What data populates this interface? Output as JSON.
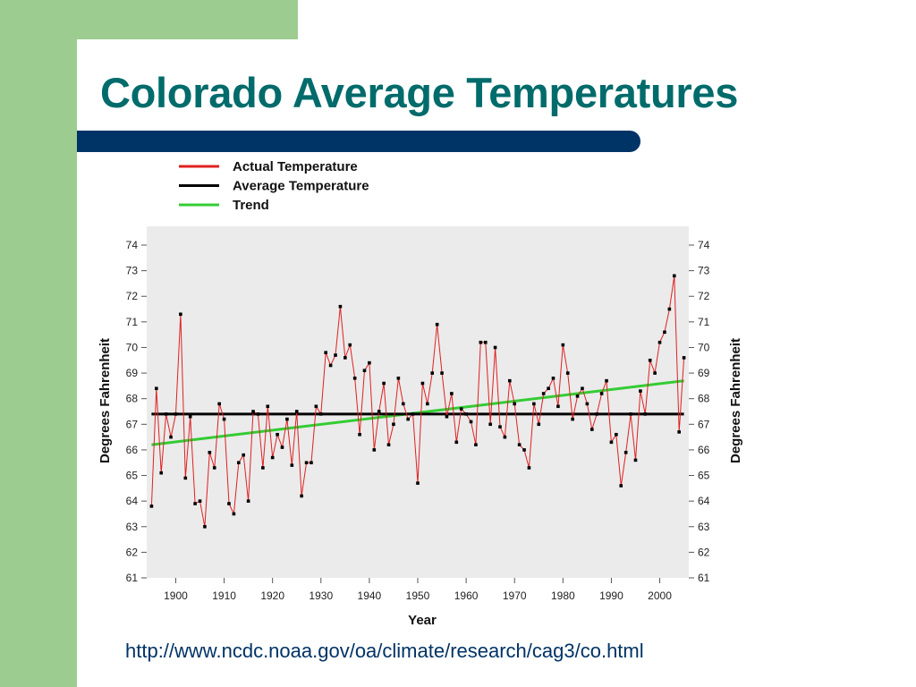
{
  "slide": {
    "title": "Colorado Average Temperatures",
    "source": "http://www.ncdc.noaa.gov/oa/climate/research/cag3/co.html",
    "colors": {
      "title": "#006b6b",
      "bar": "#003366",
      "side": "#9dcc90"
    }
  },
  "chart_data": {
    "type": "line",
    "xlabel": "Year",
    "ylabel": "Degrees Fahrenheit",
    "xlim": [
      1894,
      2006
    ],
    "ylim": [
      61,
      74
    ],
    "x_ticks": [
      1900,
      1910,
      1920,
      1930,
      1940,
      1950,
      1960,
      1970,
      1980,
      1990,
      2000
    ],
    "y_ticks": [
      61,
      62,
      63,
      64,
      65,
      66,
      67,
      68,
      69,
      70,
      71,
      72,
      73,
      74
    ],
    "grid": false,
    "legend_position": "top-left",
    "series": [
      {
        "name": "Actual Temperature",
        "color": "#e02020",
        "points": [
          [
            1895,
            63.8
          ],
          [
            1896,
            68.4
          ],
          [
            1897,
            65.1
          ],
          [
            1898,
            67.4
          ],
          [
            1899,
            66.5
          ],
          [
            1900,
            67.4
          ],
          [
            1901,
            71.3
          ],
          [
            1902,
            64.9
          ],
          [
            1903,
            67.3
          ],
          [
            1904,
            63.9
          ],
          [
            1905,
            64.0
          ],
          [
            1906,
            63.0
          ],
          [
            1907,
            65.9
          ],
          [
            1908,
            65.3
          ],
          [
            1909,
            67.8
          ],
          [
            1910,
            67.2
          ],
          [
            1911,
            63.9
          ],
          [
            1912,
            63.5
          ],
          [
            1913,
            65.5
          ],
          [
            1914,
            65.8
          ],
          [
            1915,
            64.0
          ],
          [
            1916,
            67.5
          ],
          [
            1917,
            67.4
          ],
          [
            1918,
            65.3
          ],
          [
            1919,
            67.7
          ],
          [
            1920,
            65.7
          ],
          [
            1921,
            66.6
          ],
          [
            1922,
            66.1
          ],
          [
            1923,
            67.2
          ],
          [
            1924,
            65.4
          ],
          [
            1925,
            67.5
          ],
          [
            1926,
            64.2
          ],
          [
            1927,
            65.5
          ],
          [
            1928,
            65.5
          ],
          [
            1929,
            67.7
          ],
          [
            1930,
            67.4
          ],
          [
            1931,
            69.8
          ],
          [
            1932,
            69.3
          ],
          [
            1933,
            69.7
          ],
          [
            1934,
            71.6
          ],
          [
            1935,
            69.6
          ],
          [
            1936,
            70.1
          ],
          [
            1937,
            68.8
          ],
          [
            1938,
            66.6
          ],
          [
            1939,
            69.1
          ],
          [
            1940,
            69.4
          ],
          [
            1941,
            66.0
          ],
          [
            1942,
            67.5
          ],
          [
            1943,
            68.6
          ],
          [
            1944,
            66.2
          ],
          [
            1945,
            67.0
          ],
          [
            1946,
            68.8
          ],
          [
            1947,
            67.8
          ],
          [
            1948,
            67.2
          ],
          [
            1949,
            67.4
          ],
          [
            1950,
            64.7
          ],
          [
            1951,
            68.6
          ],
          [
            1952,
            67.8
          ],
          [
            1953,
            69.0
          ],
          [
            1954,
            70.9
          ],
          [
            1955,
            69.0
          ],
          [
            1956,
            67.3
          ],
          [
            1957,
            68.2
          ],
          [
            1958,
            66.3
          ],
          [
            1959,
            67.6
          ],
          [
            1960,
            67.4
          ],
          [
            1961,
            67.1
          ],
          [
            1962,
            66.2
          ],
          [
            1963,
            70.2
          ],
          [
            1964,
            70.2
          ],
          [
            1965,
            67.0
          ],
          [
            1966,
            70.0
          ],
          [
            1967,
            66.9
          ],
          [
            1968,
            66.5
          ],
          [
            1969,
            68.7
          ],
          [
            1970,
            67.8
          ],
          [
            1971,
            66.2
          ],
          [
            1972,
            66.0
          ],
          [
            1973,
            65.3
          ],
          [
            1974,
            67.8
          ],
          [
            1975,
            67.0
          ],
          [
            1976,
            68.2
          ],
          [
            1977,
            68.4
          ],
          [
            1978,
            68.8
          ],
          [
            1979,
            67.7
          ],
          [
            1980,
            70.1
          ],
          [
            1981,
            69.0
          ],
          [
            1982,
            67.2
          ],
          [
            1983,
            68.1
          ],
          [
            1984,
            68.4
          ],
          [
            1985,
            67.8
          ],
          [
            1986,
            66.8
          ],
          [
            1987,
            67.4
          ],
          [
            1988,
            68.2
          ],
          [
            1989,
            68.7
          ],
          [
            1990,
            66.3
          ],
          [
            1991,
            66.6
          ],
          [
            1992,
            64.6
          ],
          [
            1993,
            65.9
          ],
          [
            1994,
            67.4
          ],
          [
            1995,
            65.6
          ],
          [
            1996,
            68.3
          ],
          [
            1997,
            67.4
          ],
          [
            1998,
            69.5
          ],
          [
            1999,
            69.0
          ],
          [
            2000,
            70.2
          ],
          [
            2001,
            70.6
          ],
          [
            2002,
            71.5
          ],
          [
            2003,
            72.8
          ],
          [
            2004,
            66.7
          ],
          [
            2005,
            69.6
          ]
        ]
      },
      {
        "name": "Average Temperature",
        "color": "#000000",
        "points": [
          [
            1895,
            67.4
          ],
          [
            2005,
            67.4
          ]
        ]
      },
      {
        "name": "Trend",
        "color": "#33cc33",
        "points": [
          [
            1895,
            66.2
          ],
          [
            2005,
            68.7
          ]
        ]
      }
    ]
  }
}
